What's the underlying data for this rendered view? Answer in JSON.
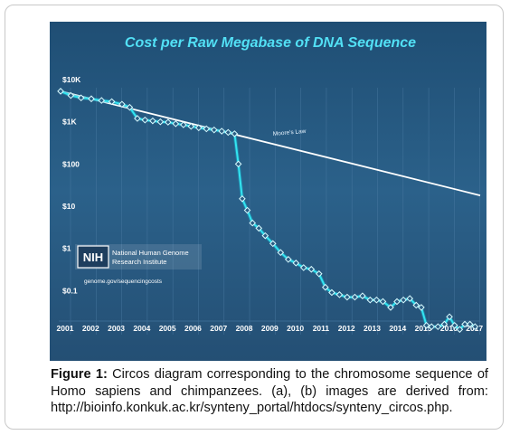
{
  "chart_data": {
    "type": "line",
    "title": "Cost per Raw Megabase of DNA Sequence",
    "y_scale": "log",
    "ylim": [
      0.01,
      10000
    ],
    "yticks": [
      {
        "value": 10000,
        "label": "$10K"
      },
      {
        "value": 1000,
        "label": "$1K"
      },
      {
        "value": 100,
        "label": "$100"
      },
      {
        "value": 10,
        "label": "$10"
      },
      {
        "value": 1,
        "label": "$1"
      },
      {
        "value": 0.1,
        "label": "$0.1"
      }
    ],
    "xlim": [
      2001,
      2017.4
    ],
    "xticks": [
      "2001",
      "2002",
      "2003",
      "2004",
      "2005",
      "2006",
      "2007",
      "2008",
      "2009",
      "2010",
      "2011",
      "2012",
      "2013",
      "2014",
      "2015",
      "2016",
      "2017"
    ],
    "grid": "vertical year separators",
    "series": [
      {
        "name": "",
        "color": "#33e4f0",
        "points": [
          [
            2001.0,
            5300
          ],
          [
            2001.4,
            4200
          ],
          [
            2001.8,
            3700
          ],
          [
            2002.2,
            3500
          ],
          [
            2002.6,
            3200
          ],
          [
            2003.0,
            3000
          ],
          [
            2003.4,
            2600
          ],
          [
            2003.7,
            2200
          ],
          [
            2004.0,
            1200
          ],
          [
            2004.3,
            1100
          ],
          [
            2004.6,
            1050
          ],
          [
            2004.9,
            1000
          ],
          [
            2005.2,
            980
          ],
          [
            2005.5,
            900
          ],
          [
            2005.8,
            850
          ],
          [
            2006.1,
            780
          ],
          [
            2006.4,
            720
          ],
          [
            2006.7,
            680
          ],
          [
            2007.0,
            640
          ],
          [
            2007.3,
            600
          ],
          [
            2007.55,
            560
          ],
          [
            2007.8,
            520
          ],
          [
            2007.95,
            100
          ],
          [
            2008.1,
            15
          ],
          [
            2008.3,
            8
          ],
          [
            2008.5,
            4
          ],
          [
            2008.75,
            3
          ],
          [
            2009.0,
            2
          ],
          [
            2009.3,
            1.3
          ],
          [
            2009.6,
            0.8
          ],
          [
            2009.9,
            0.55
          ],
          [
            2010.2,
            0.45
          ],
          [
            2010.5,
            0.35
          ],
          [
            2010.8,
            0.32
          ],
          [
            2011.1,
            0.25
          ],
          [
            2011.35,
            0.12
          ],
          [
            2011.6,
            0.09
          ],
          [
            2011.9,
            0.08
          ],
          [
            2012.2,
            0.07
          ],
          [
            2012.5,
            0.07
          ],
          [
            2012.8,
            0.075
          ],
          [
            2013.1,
            0.06
          ],
          [
            2013.35,
            0.06
          ],
          [
            2013.6,
            0.055
          ],
          [
            2013.9,
            0.04
          ],
          [
            2014.15,
            0.055
          ],
          [
            2014.4,
            0.06
          ],
          [
            2014.65,
            0.065
          ],
          [
            2014.9,
            0.045
          ],
          [
            2015.1,
            0.04
          ],
          [
            2015.3,
            0.015
          ],
          [
            2015.5,
            0.014
          ],
          [
            2015.75,
            0.014
          ],
          [
            2016.0,
            0.016
          ],
          [
            2016.2,
            0.024
          ],
          [
            2016.4,
            0.015
          ],
          [
            2016.6,
            0.012
          ],
          [
            2016.8,
            0.016
          ],
          [
            2017.0,
            0.016
          ],
          [
            2017.2,
            0.014
          ]
        ]
      },
      {
        "name": "Moore's Law",
        "color": "#ffffff",
        "points": [
          [
            2001.0,
            5300
          ],
          [
            2017.4,
            18
          ]
        ]
      }
    ]
  },
  "annotations": {
    "moores_law_label": "Moore's Law",
    "logo_text": "NIH",
    "institute_line1": "National Human Genome",
    "institute_line2": "Research Institute",
    "source_url": "genome.gov/sequencingcosts"
  },
  "caption": {
    "label": "Figure 1:",
    "text": " Circos diagram corresponding to the chromosome sequence of Homo sapiens and chimpanzees. (a), (b) images are derived from: http://bioinfo.konkuk.ac.kr/synteny_portal/htdocs/synteny_circos.php."
  },
  "colors": {
    "panel": "#2a5d84",
    "title": "#52e0f5",
    "cost_line": "#33e4f0",
    "moore_line": "#ffffff"
  }
}
